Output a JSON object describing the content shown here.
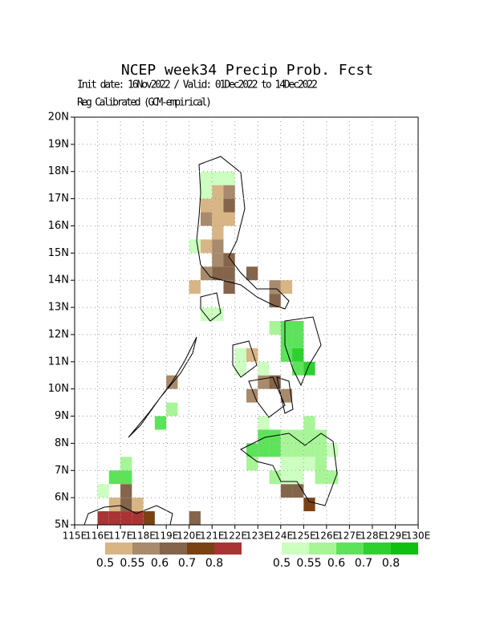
{
  "chart_data": {
    "type": "grid-map",
    "title": "NCEP week34 Precip Prob. Fcst",
    "subtitle": "Init date: 16Nov2022 / Valid: 01Dec2022 to 14Dec2022",
    "note": "Reg Calibrated (GCM-empirical)",
    "xlim": [
      115,
      130
    ],
    "ylim": [
      5,
      20
    ],
    "xticks": [
      {
        "value": 115,
        "label": "115E"
      },
      {
        "value": 116,
        "label": "116E"
      },
      {
        "value": 117,
        "label": "117E"
      },
      {
        "value": 118,
        "label": "118E"
      },
      {
        "value": 119,
        "label": "119E"
      },
      {
        "value": 120,
        "label": "120E"
      },
      {
        "value": 121,
        "label": "121E"
      },
      {
        "value": 122,
        "label": "122E"
      },
      {
        "value": 123,
        "label": "123E"
      },
      {
        "value": 124,
        "label": "124E"
      },
      {
        "value": 125,
        "label": "125E"
      },
      {
        "value": 126,
        "label": "126E"
      },
      {
        "value": 127,
        "label": "127E"
      },
      {
        "value": 128,
        "label": "128E"
      },
      {
        "value": 129,
        "label": "129E"
      },
      {
        "value": 130,
        "label": "130E"
      }
    ],
    "yticks": [
      {
        "value": 5,
        "label": "5N"
      },
      {
        "value": 6,
        "label": "6N"
      },
      {
        "value": 7,
        "label": "7N"
      },
      {
        "value": 8,
        "label": "8N"
      },
      {
        "value": 9,
        "label": "9N"
      },
      {
        "value": 10,
        "label": "10N"
      },
      {
        "value": 11,
        "label": "11N"
      },
      {
        "value": 12,
        "label": "12N"
      },
      {
        "value": 13,
        "label": "13N"
      },
      {
        "value": 14,
        "label": "14N"
      },
      {
        "value": 15,
        "label": "15N"
      },
      {
        "value": 16,
        "label": "16N"
      },
      {
        "value": 17,
        "label": "17N"
      },
      {
        "value": 18,
        "label": "18N"
      },
      {
        "value": 19,
        "label": "19N"
      },
      {
        "value": 20,
        "label": "20N"
      }
    ],
    "grid": true,
    "series": [
      {
        "colors": [
          "#d8b584",
          "#a88a6c",
          "#84644a",
          "#7a4214",
          "#a83434"
        ],
        "bounds": [
          0.5,
          0.55,
          0.6,
          0.7,
          0.8
        ],
        "cells": [
          [
            121.0,
            17.0,
            0.52
          ],
          [
            121.5,
            17.0,
            0.57
          ],
          [
            120.5,
            16.5,
            0.52
          ],
          [
            121.0,
            16.5,
            0.52
          ],
          [
            121.5,
            16.5,
            0.62
          ],
          [
            120.5,
            16.0,
            0.57
          ],
          [
            121.0,
            16.0,
            0.52
          ],
          [
            121.5,
            16.0,
            0.52
          ],
          [
            121.0,
            15.5,
            0.52
          ],
          [
            120.5,
            15.0,
            0.52
          ],
          [
            121.0,
            15.0,
            0.57
          ],
          [
            121.0,
            14.5,
            0.57
          ],
          [
            121.5,
            14.5,
            0.65
          ],
          [
            120.5,
            14.0,
            0.57
          ],
          [
            121.0,
            14.0,
            0.65
          ],
          [
            121.5,
            14.0,
            0.65
          ],
          [
            122.5,
            14.0,
            0.65
          ],
          [
            120.0,
            13.5,
            0.52
          ],
          [
            121.5,
            13.5,
            0.65
          ],
          [
            123.5,
            13.5,
            0.57
          ],
          [
            124.0,
            13.5,
            0.52
          ],
          [
            123.5,
            13.0,
            0.65
          ],
          [
            122.5,
            11.0,
            0.52
          ],
          [
            123.0,
            10.0,
            0.57
          ],
          [
            123.5,
            10.0,
            0.65
          ],
          [
            122.5,
            9.5,
            0.57
          ],
          [
            124.0,
            9.5,
            0.57
          ],
          [
            119.0,
            10.0,
            0.57
          ],
          [
            124.0,
            6.0,
            0.65
          ],
          [
            124.5,
            6.0,
            0.65
          ],
          [
            125.0,
            5.5,
            0.75
          ],
          [
            116.0,
            5.0,
            0.8
          ],
          [
            116.5,
            5.0,
            0.8
          ],
          [
            117.0,
            5.0,
            0.8
          ],
          [
            117.5,
            5.0,
            0.8
          ],
          [
            118.0,
            5.0,
            0.75
          ],
          [
            117.0,
            5.5,
            0.65
          ],
          [
            117.0,
            6.0,
            0.65
          ],
          [
            116.5,
            5.5,
            0.52
          ],
          [
            117.5,
            5.5,
            0.52
          ],
          [
            120.0,
            5.0,
            0.65
          ]
        ]
      },
      {
        "colors": [
          "#ccffc0",
          "#a8f598",
          "#5de35a",
          "#2dd12d",
          "#10c010"
        ],
        "bounds": [
          0.5,
          0.55,
          0.6,
          0.7,
          0.8
        ],
        "cells": [
          [
            120.5,
            17.5,
            0.52
          ],
          [
            121.0,
            17.5,
            0.52
          ],
          [
            121.5,
            17.5,
            0.52
          ],
          [
            120.5,
            17.0,
            0.52
          ],
          [
            120.0,
            15.0,
            0.52
          ],
          [
            121.0,
            12.5,
            0.52
          ],
          [
            120.5,
            12.5,
            0.52
          ],
          [
            123.5,
            12.0,
            0.57
          ],
          [
            124.0,
            12.0,
            0.65
          ],
          [
            124.5,
            12.0,
            0.65
          ],
          [
            124.0,
            11.5,
            0.65
          ],
          [
            124.5,
            11.5,
            0.65
          ],
          [
            124.0,
            11.0,
            0.65
          ],
          [
            124.5,
            11.0,
            0.75
          ],
          [
            124.5,
            10.5,
            0.65
          ],
          [
            125.0,
            10.5,
            0.75
          ],
          [
            122.0,
            11.0,
            0.52
          ],
          [
            122.0,
            10.5,
            0.52
          ],
          [
            123.0,
            10.5,
            0.52
          ],
          [
            123.0,
            8.5,
            0.52
          ],
          [
            125.0,
            8.5,
            0.57
          ],
          [
            122.5,
            7.5,
            0.65
          ],
          [
            122.5,
            7.0,
            0.57
          ],
          [
            123.0,
            7.5,
            0.65
          ],
          [
            123.5,
            7.5,
            0.65
          ],
          [
            123.5,
            8.0,
            0.65
          ],
          [
            123.0,
            8.0,
            0.65
          ],
          [
            124.0,
            8.0,
            0.57
          ],
          [
            124.5,
            8.0,
            0.57
          ],
          [
            125.0,
            8.0,
            0.57
          ],
          [
            125.5,
            8.0,
            0.57
          ],
          [
            124.0,
            7.5,
            0.57
          ],
          [
            124.5,
            7.5,
            0.57
          ],
          [
            125.0,
            7.5,
            0.57
          ],
          [
            125.5,
            7.5,
            0.57
          ],
          [
            126.0,
            7.5,
            0.52
          ],
          [
            124.0,
            7.0,
            0.52
          ],
          [
            124.5,
            7.0,
            0.52
          ],
          [
            125.0,
            7.0,
            0.52
          ],
          [
            125.5,
            7.0,
            0.57
          ],
          [
            123.5,
            6.5,
            0.57
          ],
          [
            124.0,
            6.5,
            0.52
          ],
          [
            124.5,
            6.5,
            0.52
          ],
          [
            125.5,
            6.5,
            0.57
          ],
          [
            126.0,
            6.5,
            0.57
          ],
          [
            118.5,
            8.5,
            0.65
          ],
          [
            119.0,
            9.0,
            0.57
          ],
          [
            116.5,
            6.5,
            0.65
          ],
          [
            117.0,
            6.5,
            0.65
          ],
          [
            116.0,
            6.0,
            0.52
          ],
          [
            117.0,
            7.0,
            0.57
          ]
        ]
      }
    ]
  }
}
